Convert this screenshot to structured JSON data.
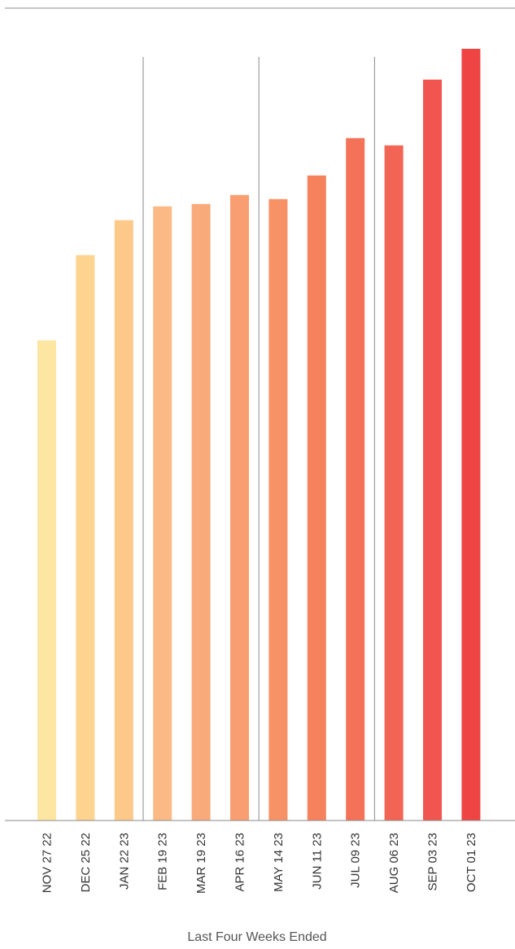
{
  "chart_data": {
    "type": "bar",
    "title": "",
    "xlabel": "Last Four Weeks Ended",
    "ylabel": "",
    "categories": [
      "NOV 27 22",
      "DEC 25 22",
      "JAN 22 23",
      "FEB 19 23",
      "MAR 19 23",
      "APR 16 23",
      "MAY 14 23",
      "JUN 11 23",
      "JUL 09 23",
      "AUG 06 23",
      "SEP 03 23",
      "OCT 01 23"
    ],
    "values": [
      59.1,
      69.6,
      73.9,
      75.6,
      75.9,
      77.0,
      76.5,
      79.4,
      84.0,
      83.1,
      91.2,
      95.0
    ],
    "ylim": [
      0,
      100
    ],
    "grid": false,
    "colors": [
      "#fde5a2",
      "#fdd390",
      "#fcc98a",
      "#fbb985",
      "#f9aa7b",
      "#f89e70",
      "#f79266",
      "#f5825d",
      "#f47258",
      "#f26454",
      "#f0564f",
      "#ee4444"
    ],
    "group_separators_after": [
      "JAN 22 23",
      "APR 16 23",
      "JUL 09 23"
    ]
  }
}
